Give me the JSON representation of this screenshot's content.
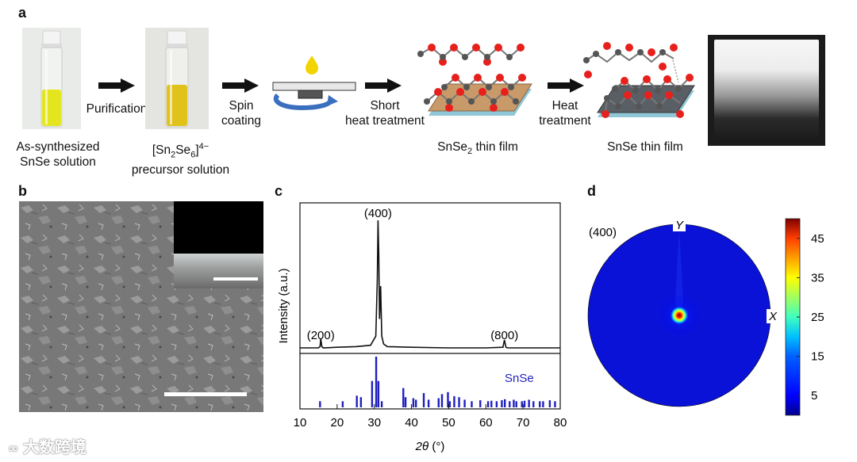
{
  "panels": {
    "a": "a",
    "b": "b",
    "c": "c",
    "d": "d"
  },
  "schematic": {
    "vial1_caption_line1": "As-synthesized",
    "vial1_caption_line2": "SnSe solution",
    "step1_label": "Purification",
    "vial2_caption_line1_prefix": "[Sn",
    "vial2_caption_sub1": "2",
    "vial2_caption_mid": "Se",
    "vial2_caption_sub2": "6",
    "vial2_caption_close": "]",
    "vial2_caption_sup": "4−",
    "vial2_caption_line2": "precursor solution",
    "step2_label_line1": "Spin",
    "step2_label_line2": "coating",
    "step3_label_line1": "Short",
    "step3_label_line2": "heat treatment",
    "film1_caption_prefix": "SnSe",
    "film1_caption_sub": "2",
    "film1_caption_suffix": " thin film",
    "step4_label_line1": "Heat",
    "step4_label_line2": "treatment",
    "film2_caption": "SnSe thin film",
    "colors": {
      "solution": "#e6e61a",
      "film1": "#c89a6a",
      "film2": "#5a5f66",
      "substrate": "#8fc7d6",
      "se_atom": "#e8201c",
      "sn_atom": "#555555",
      "droplet": "#f2d400",
      "spin_arrow": "#3a6fc0"
    }
  },
  "sem": {
    "colors": {
      "background": "#7a7a7a",
      "inset_dark": "#000000",
      "scale_bar": "#ffffff"
    }
  },
  "chart_data": [
    {
      "type": "line",
      "panel": "c",
      "xlabel_italic": "2θ",
      "xlabel_unit": " (°)",
      "ylabel": "Intensity (a.u.)",
      "xlim": [
        10,
        80
      ],
      "xticks": [
        10,
        20,
        30,
        40,
        50,
        60,
        70,
        80
      ],
      "series": [
        {
          "x": [
            10,
            15,
            15.4,
            15.6,
            15.9,
            16.3,
            20,
            25,
            29,
            30.4,
            30.8,
            31.0,
            31.2,
            31.4,
            31.7,
            32.0,
            32.5,
            33.5,
            40,
            50,
            60,
            64.6,
            65.0,
            65.4,
            65.8,
            70,
            80
          ],
          "y": [
            0.03,
            0.03,
            0.04,
            0.1,
            0.04,
            0.03,
            0.035,
            0.04,
            0.05,
            0.12,
            0.55,
            1.0,
            0.75,
            0.25,
            0.5,
            0.12,
            0.06,
            0.04,
            0.035,
            0.03,
            0.03,
            0.035,
            0.09,
            0.035,
            0.03,
            0.03,
            0.03
          ]
        }
      ],
      "peak_labels": [
        {
          "text": "(200)",
          "x": 15.6
        },
        {
          "text": "(400)",
          "x": 31.0
        },
        {
          "text": "(800)",
          "x": 65.0
        }
      ],
      "reference": {
        "name": "SnSe",
        "color": "#1f1fbf",
        "x": [
          15.4,
          21.5,
          25.3,
          26.4,
          29.4,
          30.5,
          31.1,
          32.0,
          37.8,
          38.4,
          40.5,
          41.2,
          43.3,
          44.6,
          47.3,
          48.2,
          49.8,
          50.3,
          51.5,
          52.8,
          54.3,
          56.2,
          58.5,
          60.6,
          61.5,
          62.9,
          64.3,
          65.1,
          66.4,
          67.5,
          68.2,
          69.7,
          70.4,
          71.6,
          72.8,
          74.5,
          75.4,
          77.2,
          78.6
        ],
        "y": [
          0.12,
          0.12,
          0.23,
          0.2,
          0.52,
          1.0,
          0.52,
          0.12,
          0.38,
          0.2,
          0.18,
          0.15,
          0.28,
          0.15,
          0.18,
          0.26,
          0.3,
          0.12,
          0.22,
          0.2,
          0.15,
          0.12,
          0.14,
          0.12,
          0.13,
          0.12,
          0.14,
          0.16,
          0.12,
          0.15,
          0.12,
          0.12,
          0.13,
          0.15,
          0.12,
          0.12,
          0.12,
          0.14,
          0.12
        ]
      }
    },
    {
      "type": "heatmap",
      "panel": "d",
      "subtype": "pole-figure",
      "label": "(400)",
      "axis_y_label": "Y",
      "axis_x_label": "X",
      "center_value": 48,
      "background_value": 1,
      "colorbar_ticks": [
        5,
        15,
        25,
        35,
        45
      ],
      "colorbar_range": [
        0,
        50
      ],
      "colorbar_colors": [
        "#00008f",
        "#0000ff",
        "#0060ff",
        "#00c0ff",
        "#40ffbf",
        "#a0ff5f",
        "#ffff00",
        "#ff9f00",
        "#ff3f00",
        "#bf0000",
        "#800000"
      ]
    }
  ],
  "watermark": {
    "text": "大数跨境"
  }
}
